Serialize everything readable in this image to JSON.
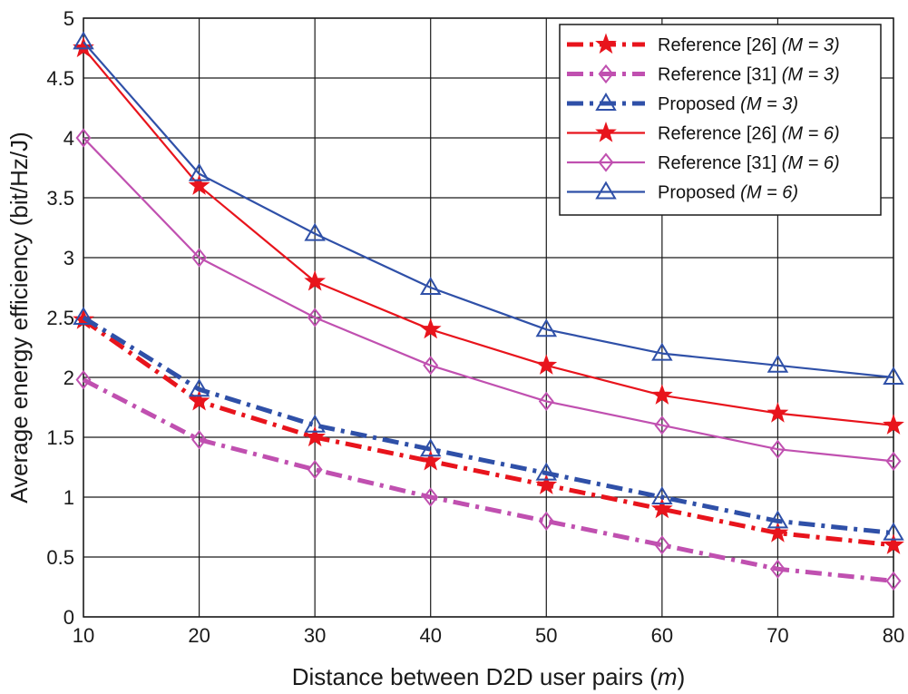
{
  "chart_data": {
    "type": "line",
    "xlabel": "Distance between D2D user pairs (",
    "xlabel_var": "m",
    "xlabel_end": ")",
    "ylabel": "Average energy efficiency (bit/Hz/J)",
    "x": [
      10,
      20,
      30,
      40,
      50,
      60,
      70,
      80
    ],
    "xlim": [
      10,
      80
    ],
    "ylim": [
      0,
      5
    ],
    "xticks": [
      "10",
      "20",
      "30",
      "40",
      "50",
      "60",
      "70",
      "80"
    ],
    "yticks": [
      "0",
      "0.5",
      "1",
      "1.5",
      "2",
      "2.5",
      "3",
      "3.5",
      "4",
      "4.5",
      "5"
    ],
    "grid": true,
    "legend_position": "top-right",
    "series": [
      {
        "name": "Reference [26]",
        "param": "(M = 3)",
        "color": "#e8141c",
        "dash": "dashdot",
        "marker": "star",
        "values": [
          2.48,
          1.8,
          1.5,
          1.3,
          1.1,
          0.9,
          0.7,
          0.6
        ]
      },
      {
        "name": "Reference [31]",
        "param": "(M = 3)",
        "color": "#c050b0",
        "dash": "dashdot",
        "marker": "diamond",
        "values": [
          1.98,
          1.48,
          1.23,
          1.0,
          0.8,
          0.6,
          0.4,
          0.3
        ]
      },
      {
        "name": "Proposed",
        "param": "(M = 3)",
        "color": "#2f50a8",
        "dash": "dashdot",
        "marker": "triangle",
        "values": [
          2.5,
          1.9,
          1.6,
          1.4,
          1.2,
          1.0,
          0.8,
          0.7
        ]
      },
      {
        "name": "Reference [26]",
        "param": "(M = 6)",
        "color": "#e8141c",
        "dash": "solid",
        "marker": "star",
        "values": [
          4.75,
          3.6,
          2.8,
          2.4,
          2.1,
          1.85,
          1.7,
          1.6
        ]
      },
      {
        "name": "Reference [31]",
        "param": "(M = 6)",
        "color": "#c050b0",
        "dash": "solid",
        "marker": "diamond",
        "values": [
          4.0,
          3.0,
          2.5,
          2.1,
          1.8,
          1.6,
          1.4,
          1.3
        ]
      },
      {
        "name": "Proposed",
        "param": "(M = 6)",
        "color": "#2f50a8",
        "dash": "solid",
        "marker": "triangle",
        "values": [
          4.8,
          3.7,
          3.2,
          2.75,
          2.4,
          2.2,
          2.1,
          2.0
        ]
      }
    ]
  }
}
